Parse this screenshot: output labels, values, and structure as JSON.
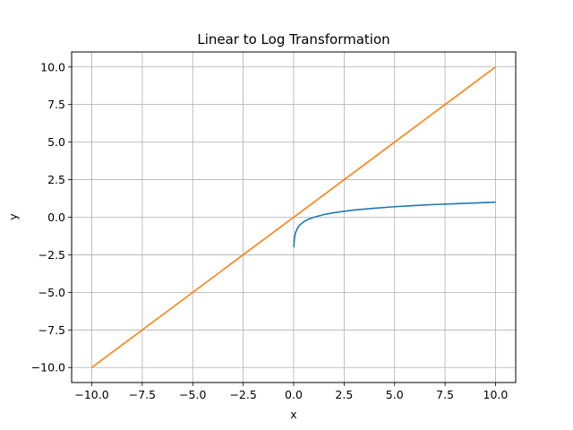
{
  "chart_data": {
    "type": "line",
    "title": "Linear to Log Transformation",
    "xlabel": "x",
    "ylabel": "y",
    "xlim": [
      -11.0,
      11.0
    ],
    "ylim": [
      -11.0,
      11.0
    ],
    "grid": true,
    "xticks": [
      -10.0,
      -7.5,
      -5.0,
      -2.5,
      0.0,
      2.5,
      5.0,
      7.5,
      10.0
    ],
    "yticks": [
      -10.0,
      -7.5,
      -5.0,
      -2.5,
      0.0,
      2.5,
      5.0,
      7.5,
      10.0
    ],
    "xtick_labels": [
      "−10.0",
      "−7.5",
      "−5.0",
      "−2.5",
      "0.0",
      "2.5",
      "5.0",
      "7.5",
      "10.0"
    ],
    "ytick_labels": [
      "−10.0",
      "−7.5",
      "−5.0",
      "−2.5",
      "0.0",
      "2.5",
      "5.0",
      "7.5",
      "10.0"
    ],
    "series": [
      {
        "color": "#1f77b4",
        "x": [
          0.01,
          0.02,
          0.05,
          0.1,
          0.2,
          0.3,
          0.5,
          0.75,
          1.0,
          1.5,
          2.0,
          2.5,
          3.0,
          4.0,
          5.0,
          6.0,
          7.0,
          8.0,
          9.0,
          10.0
        ],
        "y": [
          -2.0,
          -1.7,
          -1.3,
          -1.0,
          -0.7,
          -0.52,
          -0.3,
          -0.12,
          0.0,
          0.18,
          0.3,
          0.4,
          0.48,
          0.6,
          0.7,
          0.78,
          0.85,
          0.9,
          0.95,
          1.0
        ]
      },
      {
        "color": "#ff7f0e",
        "x": [
          -10.0,
          10.0
        ],
        "y": [
          -10.0,
          10.0
        ]
      }
    ]
  }
}
